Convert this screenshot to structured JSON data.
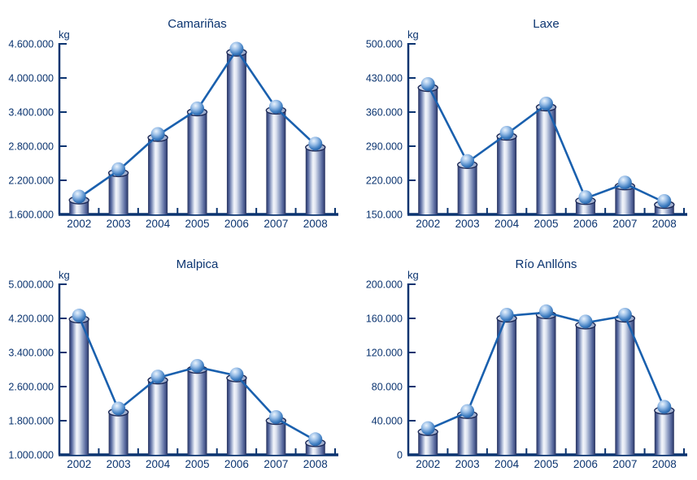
{
  "colors": {
    "text": "#0b3470",
    "axis": "#0b3470",
    "line": "#1a60ae",
    "cylinder_dark": "#27335f",
    "cylinder_mid": "#51639b",
    "cylinder_light": "#f4f6fb",
    "cap_light": "#d8deed",
    "cap_dark": "#95a5c8",
    "cap_stroke": "#1d2a57",
    "sphere_highlight": "#eaf3fc",
    "sphere_light": "#9cc0e8",
    "sphere_mid": "#3d7cc0",
    "sphere_dark": "#1a5294",
    "background": "#ffffff"
  },
  "chart_data": [
    {
      "type": "bar",
      "title": "Camariñas",
      "unit": "kg",
      "categories": [
        "2002",
        "2003",
        "2004",
        "2005",
        "2006",
        "2007",
        "2008"
      ],
      "values": [
        1850000,
        2330000,
        2950000,
        3400000,
        4450000,
        3430000,
        2780000
      ],
      "ylim": [
        1600000,
        4600000
      ],
      "ytick_step": 600000,
      "ytick_labels": [
        "4.600.000",
        "4.000.000",
        "3.400.000",
        "2.800.000",
        "2.200.000",
        "1.600.000"
      ],
      "grid": false,
      "legend": false,
      "overlay_line": true
    },
    {
      "type": "bar",
      "title": "Laxe",
      "unit": "kg",
      "categories": [
        "2002",
        "2003",
        "2004",
        "2005",
        "2006",
        "2007",
        "2008"
      ],
      "values": [
        410000,
        252000,
        310000,
        370000,
        178000,
        208000,
        170000
      ],
      "ylim": [
        150000,
        500000
      ],
      "ytick_step": 70000,
      "ytick_labels": [
        "500.000",
        "430.000",
        "360.000",
        "290.000",
        "220.000",
        "150.000"
      ],
      "grid": false,
      "legend": false,
      "overlay_line": true
    },
    {
      "type": "bar",
      "title": "Malpica",
      "unit": "kg",
      "categories": [
        "2002",
        "2003",
        "2004",
        "2005",
        "2006",
        "2007",
        "2008"
      ],
      "values": [
        4180000,
        2000000,
        2750000,
        3000000,
        2800000,
        1800000,
        1280000
      ],
      "ylim": [
        1000000,
        5000000
      ],
      "ytick_step": 800000,
      "ytick_labels": [
        "5.000.000",
        "4.200.000",
        "3.400.000",
        "2.600.000",
        "1.800.000",
        "1.000.000"
      ],
      "grid": false,
      "legend": false,
      "overlay_line": true
    },
    {
      "type": "bar",
      "title": "Río Anllóns",
      "unit": "kg",
      "categories": [
        "2002",
        "2003",
        "2004",
        "2005",
        "2006",
        "2007",
        "2008"
      ],
      "values": [
        27000,
        47000,
        160000,
        164000,
        152000,
        160000,
        52000
      ],
      "ylim": [
        0,
        200000
      ],
      "ytick_step": 40000,
      "ytick_labels": [
        "200.000",
        "160.000",
        "120.000",
        "80.000",
        "40.000",
        "0"
      ],
      "grid": false,
      "legend": false,
      "overlay_line": true
    }
  ]
}
